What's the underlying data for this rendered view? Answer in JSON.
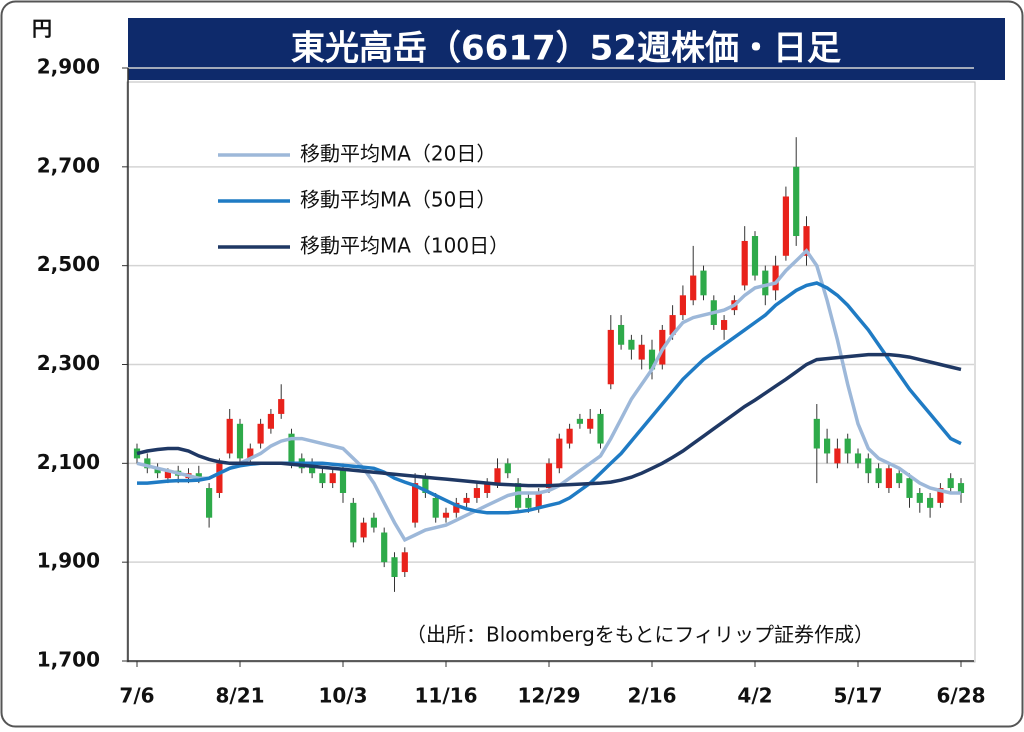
{
  "chart_data": {
    "type": "candlestick",
    "title": "東光高岳（6617）52週株価・日足",
    "y_unit": "円",
    "source": "（出所：Bloombergをもとにフィリップ証券作成）",
    "up_color": "#e8221b",
    "down_color": "#2eaa4a",
    "categories": [
      "7/6",
      null,
      null,
      null,
      null,
      null,
      null,
      null,
      null,
      null,
      "8/21",
      null,
      null,
      null,
      null,
      null,
      null,
      null,
      null,
      null,
      "10/3",
      null,
      null,
      null,
      null,
      null,
      null,
      null,
      null,
      null,
      "11/16",
      null,
      null,
      null,
      null,
      null,
      null,
      null,
      null,
      null,
      "12/29",
      null,
      null,
      null,
      null,
      null,
      null,
      null,
      null,
      null,
      "2/16",
      null,
      null,
      null,
      null,
      null,
      null,
      null,
      null,
      null,
      "4/2",
      null,
      null,
      null,
      null,
      null,
      null,
      null,
      null,
      null,
      "5/17",
      null,
      null,
      null,
      null,
      null,
      null,
      null,
      null,
      null,
      "6/28"
    ],
    "open": [
      2130,
      2110,
      2090,
      2070,
      2085,
      2070,
      2080,
      2050,
      2040,
      2120,
      2180,
      2110,
      2140,
      2170,
      2200,
      2160,
      2110,
      2100,
      2080,
      2060,
      2090,
      2020,
      1950,
      1990,
      1960,
      1910,
      1880,
      1980,
      2070,
      2030,
      1990,
      2000,
      2020,
      2030,
      2040,
      2060,
      2100,
      2060,
      2030,
      2010,
      2050,
      2090,
      2140,
      2190,
      2170,
      2200,
      2260,
      2380,
      2350,
      2310,
      2330,
      2300,
      2360,
      2400,
      2430,
      2490,
      2430,
      2370,
      2410,
      2460,
      2560,
      2490,
      2450,
      2520,
      2700,
      2520,
      2190,
      2150,
      2100,
      2150,
      2120,
      2110,
      2090,
      2050,
      2080,
      2070,
      2040,
      2030,
      2020,
      2070,
      2060
    ],
    "high": [
      2140,
      2120,
      2100,
      2090,
      2095,
      2090,
      2095,
      2060,
      2110,
      2210,
      2190,
      2140,
      2190,
      2210,
      2260,
      2170,
      2120,
      2110,
      2090,
      2090,
      2100,
      2030,
      1990,
      2000,
      1970,
      1920,
      1930,
      2080,
      2080,
      2040,
      2010,
      2030,
      2040,
      2060,
      2070,
      2110,
      2110,
      2070,
      2040,
      2050,
      2110,
      2160,
      2180,
      2200,
      2210,
      2210,
      2400,
      2400,
      2360,
      2360,
      2350,
      2380,
      2420,
      2460,
      2540,
      2500,
      2440,
      2400,
      2440,
      2580,
      2570,
      2500,
      2520,
      2660,
      2760,
      2600,
      2220,
      2170,
      2150,
      2160,
      2130,
      2120,
      2100,
      2100,
      2090,
      2080,
      2050,
      2040,
      2060,
      2080,
      2070
    ],
    "low": [
      2100,
      2080,
      2070,
      2060,
      2060,
      2060,
      2060,
      1970,
      2030,
      2110,
      2100,
      2100,
      2130,
      2160,
      2190,
      2090,
      2080,
      2070,
      2050,
      2050,
      2020,
      1930,
      1940,
      1960,
      1890,
      1840,
      1870,
      1970,
      2030,
      1980,
      1980,
      1990,
      2010,
      2020,
      2030,
      2050,
      2070,
      2000,
      2000,
      2000,
      2040,
      2080,
      2130,
      2170,
      2160,
      2130,
      2250,
      2330,
      2310,
      2290,
      2270,
      2290,
      2350,
      2390,
      2420,
      2430,
      2370,
      2350,
      2400,
      2450,
      2470,
      2420,
      2430,
      2510,
      2540,
      2500,
      2060,
      2100,
      2090,
      2100,
      2090,
      2060,
      2050,
      2040,
      2050,
      2010,
      2000,
      1990,
      2010,
      2040,
      2020
    ],
    "close": [
      2110,
      2090,
      2080,
      2085,
      2075,
      2080,
      2070,
      1990,
      2100,
      2190,
      2110,
      2130,
      2180,
      2200,
      2230,
      2100,
      2090,
      2080,
      2060,
      2080,
      2040,
      1940,
      1980,
      1970,
      1900,
      1870,
      1920,
      2060,
      2040,
      1990,
      2000,
      2020,
      2030,
      2050,
      2060,
      2090,
      2080,
      2010,
      2010,
      2040,
      2100,
      2150,
      2170,
      2180,
      2190,
      2140,
      2370,
      2340,
      2330,
      2340,
      2290,
      2370,
      2400,
      2440,
      2480,
      2440,
      2380,
      2390,
      2430,
      2550,
      2480,
      2440,
      2500,
      2640,
      2560,
      2580,
      2130,
      2120,
      2130,
      2120,
      2100,
      2080,
      2060,
      2090,
      2060,
      2030,
      2020,
      2010,
      2050,
      2050,
      2040
    ],
    "series": [
      {
        "name": "移動平均MA（20日）",
        "color": "#9db8d9",
        "values": [
          2100,
          2095,
          2090,
          2085,
          2080,
          2075,
          2070,
          2070,
          2080,
          2090,
          2100,
          2110,
          2120,
          2135,
          2145,
          2150,
          2150,
          2145,
          2140,
          2135,
          2130,
          2110,
          2090,
          2060,
          2020,
          1980,
          1945,
          1955,
          1965,
          1970,
          1975,
          1985,
          1995,
          2005,
          2015,
          2025,
          2035,
          2040,
          2040,
          2040,
          2045,
          2055,
          2070,
          2085,
          2100,
          2115,
          2150,
          2190,
          2230,
          2260,
          2290,
          2330,
          2360,
          2385,
          2395,
          2400,
          2405,
          2410,
          2420,
          2440,
          2455,
          2460,
          2465,
          2490,
          2510,
          2530,
          2500,
          2430,
          2350,
          2260,
          2180,
          2130,
          2110,
          2100,
          2090,
          2075,
          2060,
          2050,
          2045,
          2040,
          2040
        ]
      },
      {
        "name": "移動平均MA（50日）",
        "color": "#1f7bc4",
        "values": [
          2060,
          2060,
          2062,
          2064,
          2065,
          2065,
          2066,
          2070,
          2080,
          2090,
          2095,
          2098,
          2100,
          2100,
          2100,
          2100,
          2100,
          2100,
          2100,
          2098,
          2096,
          2094,
          2092,
          2090,
          2082,
          2070,
          2062,
          2055,
          2045,
          2035,
          2025,
          2015,
          2008,
          2003,
          2000,
          2000,
          2000,
          2002,
          2005,
          2010,
          2015,
          2020,
          2030,
          2045,
          2060,
          2080,
          2100,
          2120,
          2145,
          2170,
          2195,
          2220,
          2245,
          2270,
          2290,
          2310,
          2325,
          2340,
          2355,
          2370,
          2385,
          2400,
          2420,
          2435,
          2450,
          2460,
          2465,
          2455,
          2440,
          2420,
          2395,
          2370,
          2340,
          2310,
          2280,
          2250,
          2225,
          2200,
          2175,
          2150,
          2140
        ]
      },
      {
        "name": "移動平均MA（100日）",
        "color": "#1f3864",
        "values": [
          2120,
          2125,
          2128,
          2130,
          2130,
          2125,
          2115,
          2108,
          2103,
          2100,
          2100,
          2100,
          2100,
          2100,
          2100,
          2098,
          2096,
          2094,
          2092,
          2090,
          2088,
          2086,
          2084,
          2082,
          2080,
          2078,
          2076,
          2074,
          2072,
          2070,
          2068,
          2066,
          2064,
          2062,
          2060,
          2058,
          2057,
          2056,
          2055,
          2055,
          2055,
          2056,
          2057,
          2058,
          2059,
          2060,
          2062,
          2066,
          2072,
          2080,
          2090,
          2100,
          2112,
          2125,
          2140,
          2155,
          2170,
          2185,
          2200,
          2215,
          2228,
          2242,
          2256,
          2270,
          2285,
          2300,
          2310,
          2312,
          2314,
          2316,
          2318,
          2320,
          2320,
          2320,
          2318,
          2315,
          2310,
          2305,
          2300,
          2295,
          2290
        ]
      }
    ],
    "ylim": [
      1700,
      2900
    ],
    "yticks": [
      {
        "value": 1700,
        "label": "1,700"
      },
      {
        "value": 1900,
        "label": "1,900"
      },
      {
        "value": 2100,
        "label": "2,100"
      },
      {
        "value": 2300,
        "label": "2,300"
      },
      {
        "value": 2500,
        "label": "2,500"
      },
      {
        "value": 2700,
        "label": "2,700"
      },
      {
        "value": 2900,
        "label": "2,900"
      }
    ],
    "grid": true
  }
}
